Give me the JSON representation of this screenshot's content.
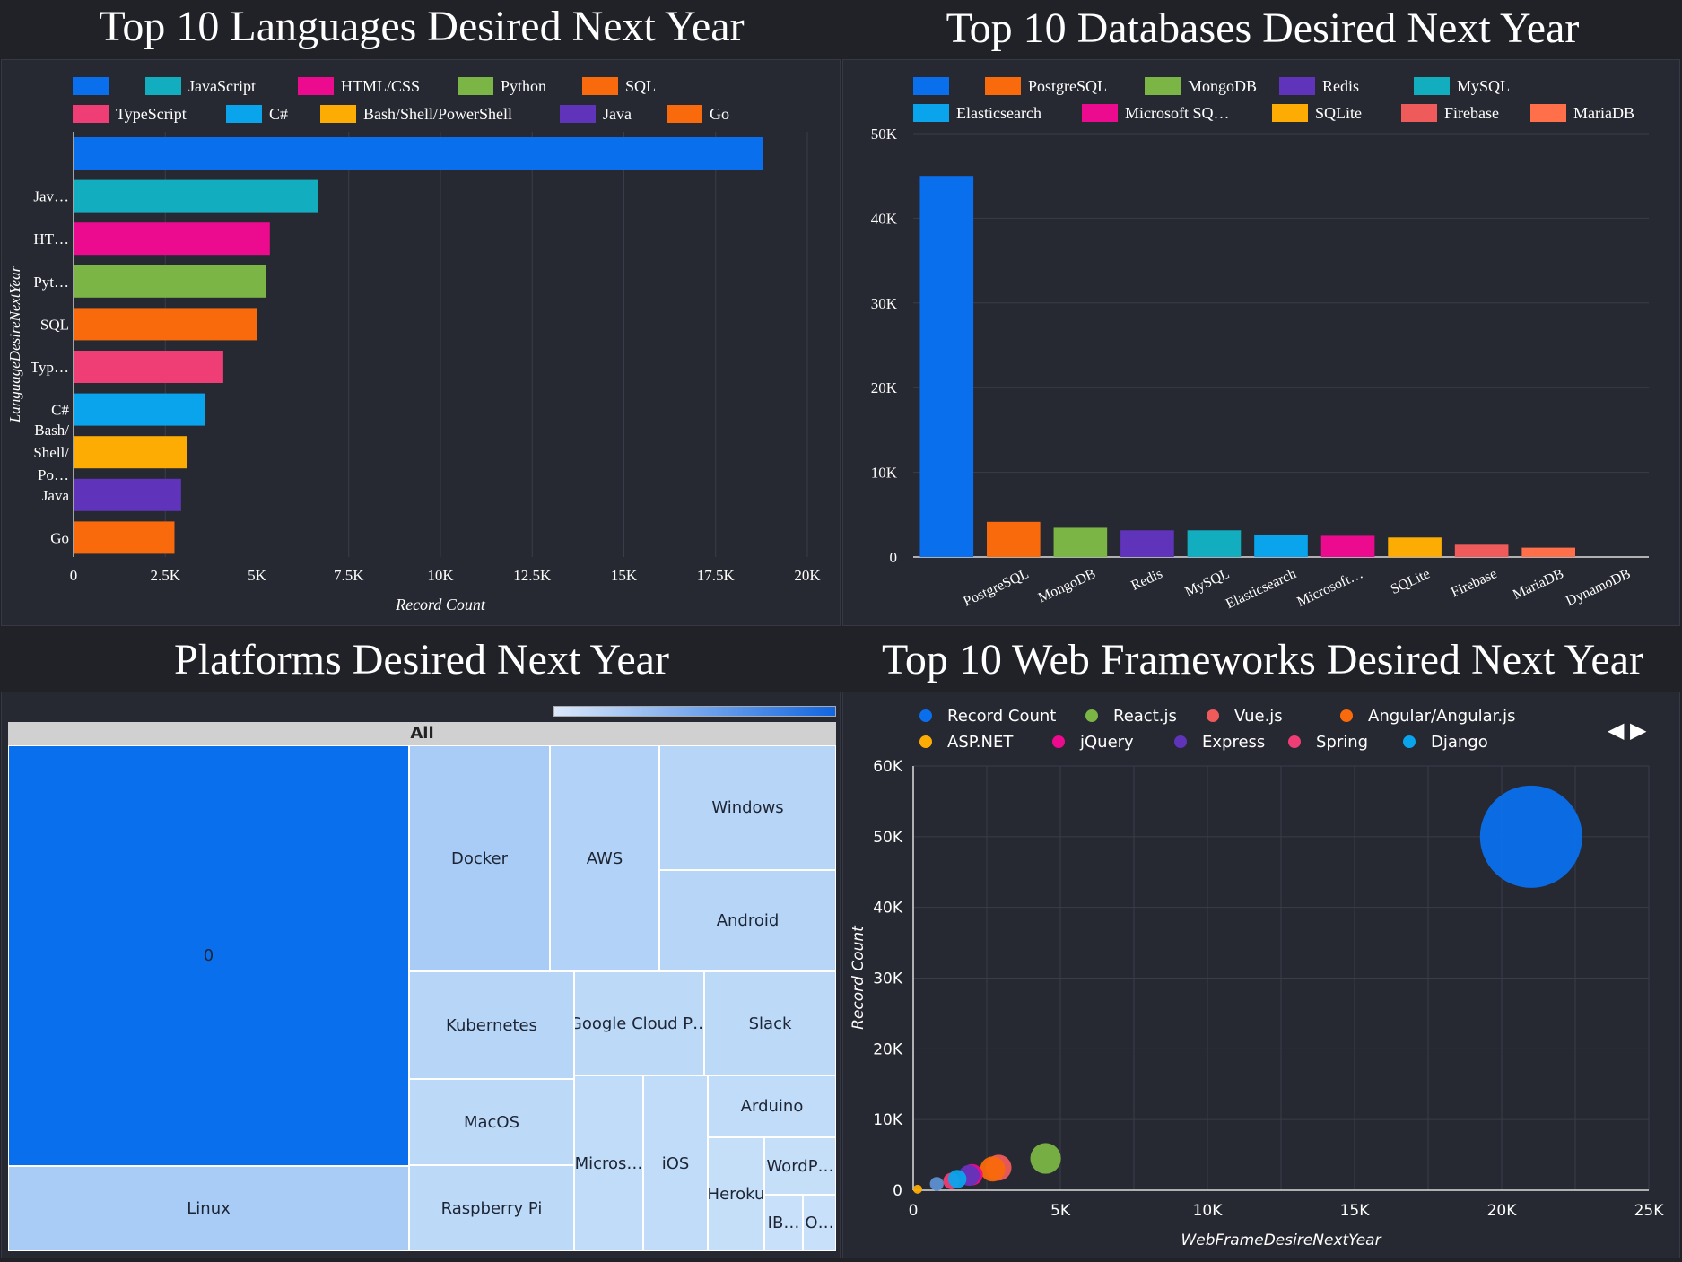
{
  "titles": {
    "languages": "Top 10 Languages Desired Next Year",
    "databases": "Top 10 Databases Desired Next Year",
    "platforms": "Platforms Desired Next Year",
    "webframes": "Top 10 Web Frameworks Desired Next Year"
  },
  "colors": {
    "background": "#212228",
    "panel": "#262932",
    "grid": "#3a3d48",
    "blue": "#0a6fec"
  },
  "nav": {
    "prev_icon": "◀",
    "next_icon": "▶"
  },
  "chart_data": [
    {
      "id": "languages",
      "type": "bar",
      "orientation": "horizontal",
      "title": "Top 10 Languages Desired Next Year",
      "xlabel": "Record Count",
      "ylabel": "LanguageDesireNextYear",
      "xlim": [
        0,
        20000
      ],
      "xticks": [
        "0",
        "2.5K",
        "5K",
        "7.5K",
        "10K",
        "12.5K",
        "15K",
        "17.5K",
        "20K"
      ],
      "xtick_values": [
        0,
        2500,
        5000,
        7500,
        10000,
        12500,
        15000,
        17500,
        20000
      ],
      "legend": [
        "",
        "JavaScript",
        "HTML/CSS",
        "Python",
        "SQL",
        "TypeScript",
        "C#",
        "Bash/Shell/PowerShell",
        "Java",
        "Go"
      ],
      "categories": [
        "",
        "Jav…",
        "HT…",
        "Pyt…",
        "SQL",
        "Typ…",
        "C#",
        "Bash/ Shell/ Po…",
        "Java",
        "Go"
      ],
      "values": [
        18800,
        6650,
        5350,
        5250,
        5000,
        4080,
        3570,
        3090,
        2930,
        2750
      ],
      "colors": [
        "#0a6fec",
        "#12aec0",
        "#ec0b8e",
        "#7ab546",
        "#f96a0c",
        "#ee3e75",
        "#0aa4ec",
        "#fdac04",
        "#6034ba",
        "#f96a0c"
      ]
    },
    {
      "id": "databases",
      "type": "bar",
      "title": "Top 10 Databases Desired Next Year",
      "ylim": [
        0,
        50000
      ],
      "yticks": [
        "0",
        "10K",
        "20K",
        "30K",
        "40K",
        "50K"
      ],
      "ytick_values": [
        0,
        10000,
        20000,
        30000,
        40000,
        50000
      ],
      "legend": [
        "",
        "PostgreSQL",
        "MongoDB",
        "Redis",
        "MySQL",
        "Elasticsearch",
        "Microsoft SQ…",
        "SQLite",
        "Firebase",
        "MariaDB"
      ],
      "categories": [
        "",
        "PostgreSQL",
        "MongoDB",
        "Redis",
        "MySQL",
        "Elasticsearch",
        "Microsoft…",
        "SQLite",
        "Firebase",
        "MariaDB",
        "DynamoDB"
      ],
      "values": [
        45000,
        4150,
        3450,
        3150,
        3150,
        2650,
        2500,
        2300,
        1450,
        1100,
        0
      ],
      "colors": [
        "#0a6fec",
        "#f96a0c",
        "#7ab546",
        "#6034ba",
        "#12aec0",
        "#0aa4ec",
        "#ec0b8e",
        "#fdac04",
        "#ef5b5b",
        "#ff6f4a",
        "#3a6ab0"
      ]
    },
    {
      "id": "platforms",
      "type": "treemap",
      "title": "Platforms Desired Next Year",
      "root_label": "All",
      "items": [
        {
          "label": "0",
          "value": 19000,
          "color": "#0a6fec"
        },
        {
          "label": "Linux",
          "value": 1900,
          "color": "#a8ccf5"
        },
        {
          "label": "Docker",
          "value": 3900,
          "color": "#a8ccf5"
        },
        {
          "label": "AWS",
          "value": 3000,
          "color": "#b2d3f7"
        },
        {
          "label": "Windows",
          "value": 2100,
          "color": "#b7d6f7"
        },
        {
          "label": "Android",
          "value": 2100,
          "color": "#b7d6f7"
        },
        {
          "label": "Kubernetes",
          "value": 2100,
          "color": "#b7d6f7"
        },
        {
          "label": "Google Cloud P…",
          "value": 1500,
          "color": "#bcd9f8"
        },
        {
          "label": "Slack",
          "value": 1400,
          "color": "#bcd9f8"
        },
        {
          "label": "MacOS",
          "value": 1700,
          "color": "#bcd9f8"
        },
        {
          "label": "Raspberry Pi",
          "value": 1600,
          "color": "#bcd9f8"
        },
        {
          "label": "Micros…",
          "value": 1300,
          "color": "#c1dcf8"
        },
        {
          "label": "iOS",
          "value": 1300,
          "color": "#c1dcf8"
        },
        {
          "label": "Arduino",
          "value": 900,
          "color": "#c1dcf8"
        },
        {
          "label": "Heroku",
          "value": 800,
          "color": "#c6dff9"
        },
        {
          "label": "WordP…",
          "value": 500,
          "color": "#c6dff9"
        },
        {
          "label": "IB…",
          "value": 300,
          "color": "#c8e0f9"
        },
        {
          "label": "O…",
          "value": 300,
          "color": "#c8e0f9"
        }
      ]
    },
    {
      "id": "webframes",
      "type": "scatter",
      "title": "Top 10 Web Frameworks Desired Next Year",
      "xlabel": "WebFrameDesireNextYear",
      "ylabel": "Record Count",
      "xlim": [
        0,
        25000
      ],
      "ylim": [
        0,
        60000
      ],
      "xticks": [
        "0",
        "5K",
        "10K",
        "15K",
        "20K",
        "25K"
      ],
      "xtick_values": [
        0,
        5000,
        10000,
        15000,
        20000,
        25000
      ],
      "yticks": [
        "0",
        "10K",
        "20K",
        "30K",
        "40K",
        "50K",
        "60K"
      ],
      "ytick_values": [
        0,
        10000,
        20000,
        30000,
        40000,
        50000,
        60000
      ],
      "legend": [
        "Record Count",
        "React.js",
        "Vue.js",
        "Angular/Angular.js",
        "ASP.NET",
        "jQuery",
        "Express",
        "Spring",
        "Django"
      ],
      "series": [
        {
          "name": "Record Count",
          "x": 21000,
          "y": 50000,
          "color": "#0a6fec"
        },
        {
          "name": "React.js",
          "x": 4500,
          "y": 4500,
          "color": "#7ab546"
        },
        {
          "name": "Vue.js",
          "x": 2900,
          "y": 3200,
          "color": "#ef5b5b"
        },
        {
          "name": "Angular/Angular.js",
          "x": 2700,
          "y": 3000,
          "color": "#f96a0c"
        },
        {
          "name": "ASP.NET",
          "x": 150,
          "y": 150,
          "color": "#fdac04"
        },
        {
          "name": "jQuery",
          "x": 2000,
          "y": 2200,
          "color": "#ec0b8e"
        },
        {
          "name": "Express",
          "x": 1900,
          "y": 2100,
          "color": "#6034ba"
        },
        {
          "name": "Spring",
          "x": 1300,
          "y": 1300,
          "color": "#ee3e75"
        },
        {
          "name": "Django",
          "x": 1500,
          "y": 1600,
          "color": "#0aa4ec"
        },
        {
          "name": "",
          "x": 800,
          "y": 900,
          "color": "#5d8fd0"
        }
      ]
    }
  ]
}
